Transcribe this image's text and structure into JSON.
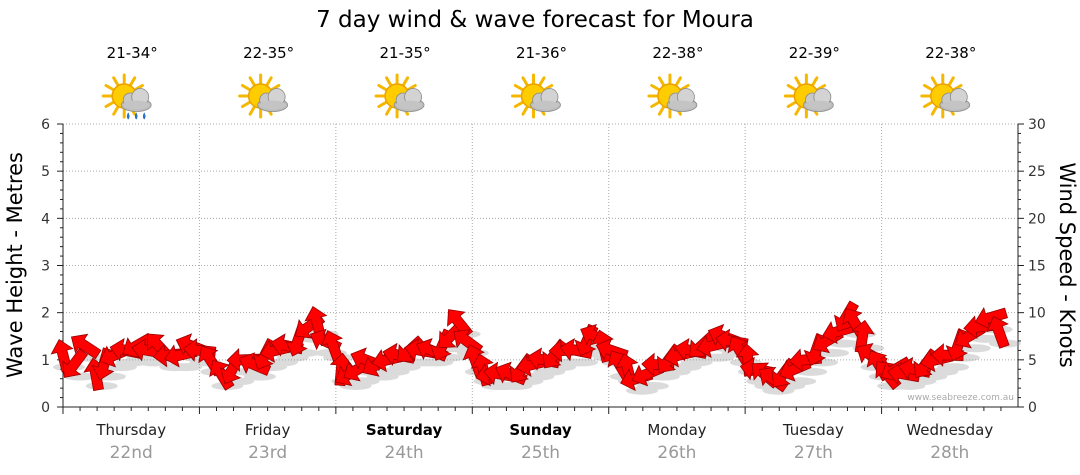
{
  "chart_data": {
    "type": "line",
    "title": "7 day wind & wave forecast for Moura",
    "ylabel_left": "Wave Height - Metres",
    "ylabel_right": "Wind Speed - Knots",
    "ylim_left": [
      0,
      6
    ],
    "ylim_right": [
      0,
      30
    ],
    "yticks_left": [
      "0",
      "1",
      "2",
      "3",
      "4",
      "5",
      "6"
    ],
    "yticks_right": [
      "0",
      "5",
      "10",
      "15",
      "20",
      "25",
      "30"
    ],
    "grid": true,
    "credit": "www.seabreeze.com.au",
    "days": [
      {
        "name": "Thursday",
        "date": "22nd",
        "bold": false,
        "temp": "21-34°",
        "icon": "partly-cloudy-showers-icon"
      },
      {
        "name": "Friday",
        "date": "23rd",
        "bold": false,
        "temp": "22-35°",
        "icon": "partly-cloudy-icon"
      },
      {
        "name": "Saturday",
        "date": "24th",
        "bold": true,
        "temp": "21-35°",
        "icon": "partly-cloudy-icon"
      },
      {
        "name": "Sunday",
        "date": "25th",
        "bold": true,
        "temp": "21-36°",
        "icon": "partly-cloudy-icon"
      },
      {
        "name": "Monday",
        "date": "26th",
        "bold": false,
        "temp": "22-38°",
        "icon": "partly-cloudy-icon"
      },
      {
        "name": "Tuesday",
        "date": "27th",
        "bold": false,
        "temp": "22-39°",
        "icon": "partly-cloudy-icon"
      },
      {
        "name": "Wednesday",
        "date": "28th",
        "bold": false,
        "temp": "22-38°",
        "icon": "partly-cloudy-icon"
      }
    ],
    "series": [
      {
        "x_unit": "day index (0 = Thursday 00:00)",
        "y_unit": "knots",
        "color": "#ff0000",
        "points": [
          [
            0.0,
            5.5
          ],
          [
            0.08,
            4.5
          ],
          [
            0.16,
            6.5
          ],
          [
            0.24,
            3.5
          ],
          [
            0.3,
            4.5
          ],
          [
            0.38,
            5.5
          ],
          [
            0.46,
            6.0
          ],
          [
            0.54,
            6.5
          ],
          [
            0.62,
            6.0
          ],
          [
            0.7,
            6.5
          ],
          [
            0.78,
            5.5
          ],
          [
            0.86,
            5.5
          ],
          [
            0.94,
            6.5
          ],
          [
            1.0,
            6.0
          ],
          [
            1.08,
            5.0
          ],
          [
            1.16,
            3.5
          ],
          [
            1.24,
            4.0
          ],
          [
            1.32,
            5.0
          ],
          [
            1.4,
            4.5
          ],
          [
            1.48,
            5.5
          ],
          [
            1.56,
            6.0
          ],
          [
            1.64,
            6.5
          ],
          [
            1.72,
            7.0
          ],
          [
            1.8,
            8.5
          ],
          [
            1.86,
            9.0
          ],
          [
            1.92,
            7.0
          ],
          [
            1.98,
            6.5
          ],
          [
            2.04,
            4.0
          ],
          [
            2.1,
            3.5
          ],
          [
            2.16,
            4.0
          ],
          [
            2.22,
            5.0
          ],
          [
            2.3,
            4.5
          ],
          [
            2.38,
            5.0
          ],
          [
            2.46,
            5.5
          ],
          [
            2.54,
            6.0
          ],
          [
            2.62,
            6.0
          ],
          [
            2.7,
            6.0
          ],
          [
            2.78,
            6.5
          ],
          [
            2.84,
            7.5
          ],
          [
            2.9,
            9.0
          ],
          [
            2.96,
            7.0
          ],
          [
            3.02,
            5.0
          ],
          [
            3.08,
            4.0
          ],
          [
            3.14,
            3.5
          ],
          [
            3.2,
            3.5
          ],
          [
            3.28,
            3.5
          ],
          [
            3.36,
            4.0
          ],
          [
            3.44,
            4.5
          ],
          [
            3.52,
            5.0
          ],
          [
            3.6,
            5.5
          ],
          [
            3.68,
            6.0
          ],
          [
            3.76,
            6.0
          ],
          [
            3.84,
            7.0
          ],
          [
            3.9,
            7.5
          ],
          [
            3.96,
            6.5
          ],
          [
            4.02,
            6.0
          ],
          [
            4.08,
            4.5
          ],
          [
            4.14,
            4.0
          ],
          [
            4.2,
            3.0
          ],
          [
            4.28,
            3.5
          ],
          [
            4.36,
            4.5
          ],
          [
            4.44,
            5.0
          ],
          [
            4.52,
            5.5
          ],
          [
            4.6,
            6.0
          ],
          [
            4.68,
            6.5
          ],
          [
            4.76,
            6.5
          ],
          [
            4.84,
            7.5
          ],
          [
            4.9,
            7.0
          ],
          [
            4.96,
            6.0
          ],
          [
            5.02,
            5.0
          ],
          [
            5.08,
            4.0
          ],
          [
            5.14,
            3.5
          ],
          [
            5.2,
            3.0
          ],
          [
            5.28,
            3.5
          ],
          [
            5.36,
            4.0
          ],
          [
            5.44,
            5.0
          ],
          [
            5.52,
            6.0
          ],
          [
            5.6,
            7.0
          ],
          [
            5.68,
            8.0
          ],
          [
            5.74,
            9.5
          ],
          [
            5.8,
            9.0
          ],
          [
            5.86,
            7.5
          ],
          [
            5.92,
            5.5
          ],
          [
            5.98,
            4.5
          ],
          [
            6.04,
            3.5
          ],
          [
            6.1,
            4.0
          ],
          [
            6.16,
            3.5
          ],
          [
            6.24,
            4.0
          ],
          [
            6.32,
            4.5
          ],
          [
            6.4,
            5.0
          ],
          [
            6.48,
            5.5
          ],
          [
            6.56,
            6.5
          ],
          [
            6.64,
            7.5
          ],
          [
            6.72,
            8.5
          ],
          [
            6.8,
            9.5
          ],
          [
            6.86,
            8.0
          ]
        ]
      }
    ]
  }
}
